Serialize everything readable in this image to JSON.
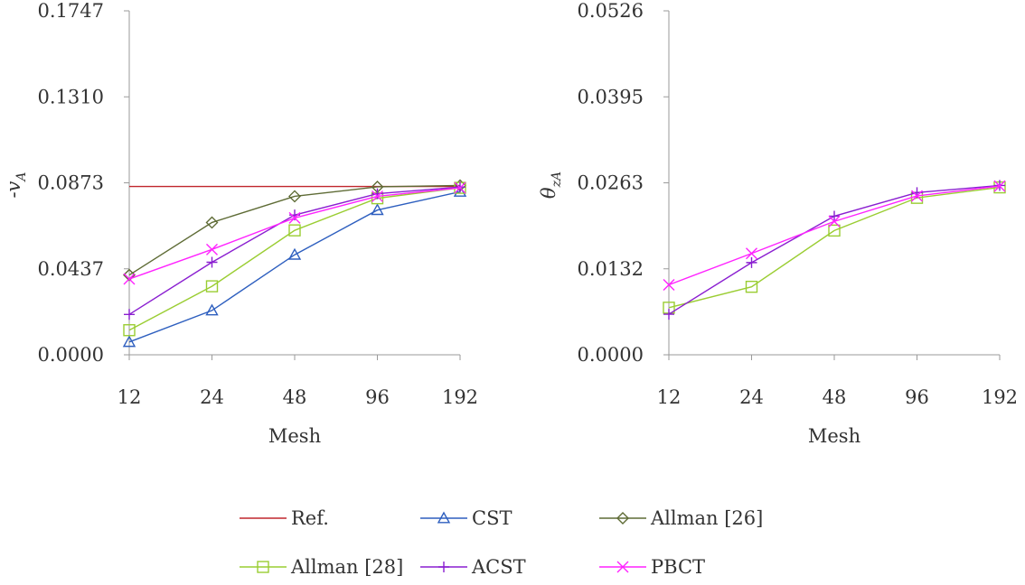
{
  "chart_data": [
    {
      "type": "line",
      "title": "",
      "xlabel": "Mesh",
      "ylabel_main": "-v",
      "ylabel_sub": "A",
      "categories": [
        "12",
        "24",
        "48",
        "96",
        "192"
      ],
      "yticks": [
        "0.0000",
        "0.0437",
        "0.0873",
        "0.1310",
        "0.1747"
      ],
      "ylim": [
        0,
        0.1747
      ],
      "grid": false,
      "series": [
        {
          "name": "Ref.",
          "color": "#C0262D",
          "marker": "none",
          "values": [
            0.0855,
            0.0855,
            0.0855,
            0.0855,
            0.0855
          ]
        },
        {
          "name": "CST",
          "color": "#2E5FBF",
          "marker": "triangle",
          "values": [
            0.0065,
            0.0225,
            0.0508,
            0.0735,
            0.0828
          ]
        },
        {
          "name": "Allman [26]",
          "color": "#5E6B35",
          "marker": "diamond",
          "values": [
            0.0405,
            0.0672,
            0.0805,
            0.0853,
            0.086
          ]
        },
        {
          "name": "Allman [28]",
          "color": "#9ACD32",
          "marker": "square",
          "values": [
            0.0125,
            0.0348,
            0.0632,
            0.0795,
            0.0848
          ]
        },
        {
          "name": "ACST",
          "color": "#8A1ED0",
          "marker": "plus",
          "values": [
            0.0205,
            0.047,
            0.071,
            0.0818,
            0.0852
          ]
        },
        {
          "name": "PBCT",
          "color": "#FF22FF",
          "marker": "cross",
          "values": [
            0.0385,
            0.0535,
            0.0695,
            0.0805,
            0.0848
          ]
        }
      ]
    },
    {
      "type": "line",
      "title": "",
      "xlabel": "Mesh",
      "ylabel_main": "θ",
      "ylabel_sub": "zA",
      "categories": [
        "12",
        "24",
        "48",
        "96",
        "192"
      ],
      "yticks": [
        "0.0000",
        "0.0132",
        "0.0263",
        "0.0395",
        "0.0526"
      ],
      "ylim": [
        0,
        0.0526
      ],
      "grid": false,
      "series": [
        {
          "name": "Allman [28]",
          "color": "#9ACD32",
          "marker": "square",
          "values": [
            0.0072,
            0.0104,
            0.019,
            0.024,
            0.0256
          ]
        },
        {
          "name": "ACST",
          "color": "#8A1ED0",
          "marker": "plus",
          "values": [
            0.0062,
            0.0141,
            0.0212,
            0.0248,
            0.0259
          ]
        },
        {
          "name": "PBCT",
          "color": "#FF22FF",
          "marker": "cross",
          "values": [
            0.0107,
            0.0155,
            0.0204,
            0.0243,
            0.0258
          ]
        }
      ]
    }
  ],
  "legend": {
    "placement": "bottom",
    "entries": [
      {
        "name": "Ref.",
        "color": "#C0262D",
        "marker": "none"
      },
      {
        "name": "CST",
        "color": "#2E5FBF",
        "marker": "triangle"
      },
      {
        "name": "Allman [26]",
        "color": "#5E6B35",
        "marker": "diamond"
      },
      {
        "name": "Allman [28]",
        "color": "#9ACD32",
        "marker": "square"
      },
      {
        "name": "ACST",
        "color": "#8A1ED0",
        "marker": "plus"
      },
      {
        "name": "PBCT",
        "color": "#FF22FF",
        "marker": "cross"
      }
    ]
  }
}
